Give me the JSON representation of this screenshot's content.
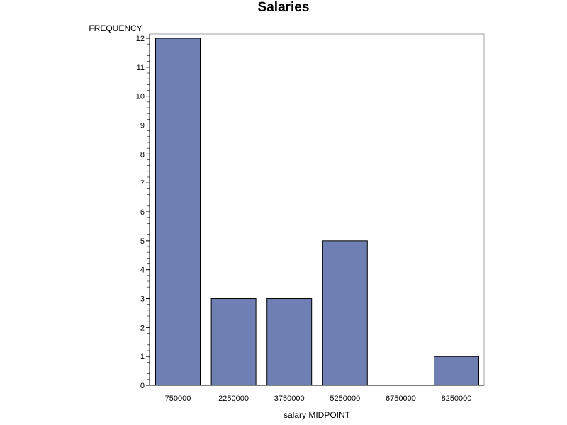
{
  "chart_data": {
    "type": "bar",
    "title": "Salaries",
    "xlabel": "salary MIDPOINT",
    "ylabel": "FREQUENCY",
    "categories": [
      "750000",
      "2250000",
      "3750000",
      "5250000",
      "6750000",
      "8250000"
    ],
    "values": [
      12,
      3,
      3,
      5,
      0,
      1
    ],
    "ylim": [
      0,
      12
    ],
    "yticks": [
      0,
      1,
      2,
      3,
      4,
      5,
      6,
      7,
      8,
      9,
      10,
      11,
      12
    ],
    "grid": false,
    "colors": {
      "bar_fill": "#6f7eb3",
      "bar_stroke": "#000000",
      "frame": "#a0a0a0"
    }
  }
}
